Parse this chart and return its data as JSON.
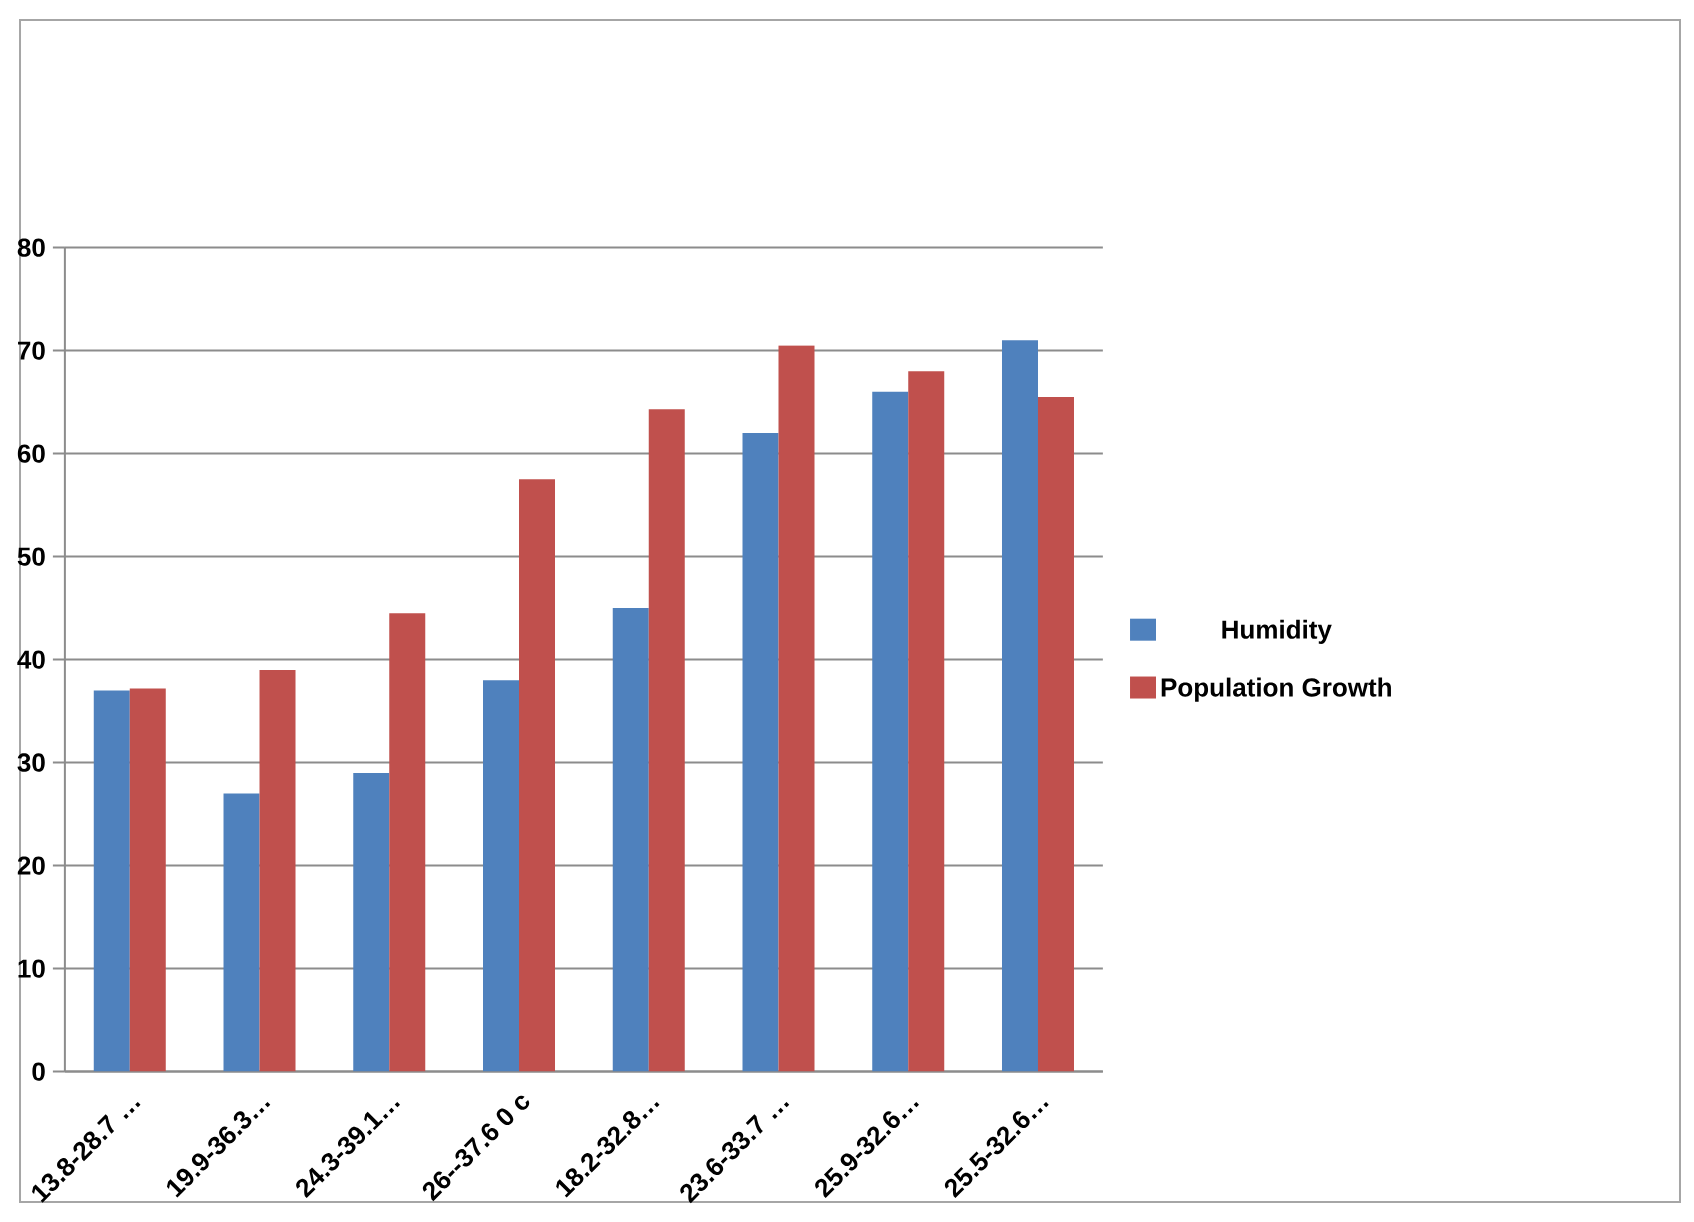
{
  "chart_data": {
    "type": "bar",
    "categories": [
      "13.8-28.7 …",
      "19.9-36.3…",
      "24.3-39.1…",
      "26--37.6 0 c",
      "18.2-32.8…",
      "23.6-33.7 …",
      "25.9-32.6…",
      "25.5-32.6…"
    ],
    "series": [
      {
        "name": "Humidity",
        "color": "#4f81bd",
        "values": [
          37,
          27,
          29,
          38,
          45,
          62,
          66,
          71
        ]
      },
      {
        "name": "Population Growth",
        "color": "#c0504d",
        "values": [
          37.2,
          39,
          44.5,
          57.5,
          64.3,
          70.5,
          68,
          65.5
        ]
      }
    ],
    "ylim": [
      0,
      80
    ],
    "yticks": [
      0,
      10,
      20,
      30,
      40,
      50,
      60,
      70,
      80
    ],
    "grid": "y",
    "legend": "right"
  }
}
